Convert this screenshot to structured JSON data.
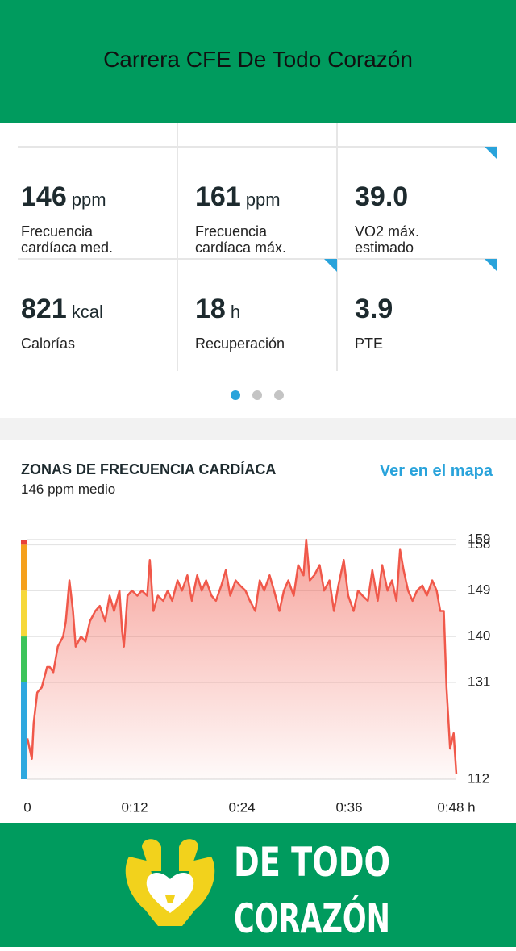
{
  "header": {
    "title": "Carrera CFE De Todo Corazón"
  },
  "stats": [
    {
      "value": "146",
      "unit": "ppm",
      "label_lines": [
        "Frecuencia",
        "cardíaca med."
      ]
    },
    {
      "value": "161",
      "unit": "ppm",
      "label_lines": [
        "Frecuencia",
        "cardíaca máx."
      ]
    },
    {
      "value": "39.0",
      "label_lines": [
        "VO2 máx.",
        "estimado"
      ]
    },
    {
      "value": "821",
      "unit": "kcal",
      "label_lines": [
        "Calorías"
      ]
    },
    {
      "value": "18",
      "unit": "h",
      "label_lines": [
        "Recuperación"
      ]
    },
    {
      "value": "3.9",
      "label_lines": [
        "PTE"
      ]
    }
  ],
  "section": {
    "title": "ZONAS DE FRECUENCIA CARDÍACA",
    "subtitle": "146 ppm medio",
    "link": "Ver en el mapa"
  },
  "chart_data": {
    "type": "line",
    "x": [
      0,
      0.5,
      0.7,
      1.1,
      1.6,
      2.2,
      2.5,
      2.9,
      3.4,
      4.0,
      4.3,
      4.7,
      5.1,
      5.4,
      6.0,
      6.5,
      7.0,
      7.6,
      8.1,
      8.7,
      9.2,
      9.7,
      10.3,
      10.6,
      10.8,
      11.2,
      11.7,
      12.3,
      12.8,
      13.4,
      13.7,
      14.1,
      14.6,
      15.2,
      15.7,
      16.2,
      16.8,
      17.3,
      17.9,
      18.4,
      19.0,
      19.5,
      20.0,
      20.6,
      21.1,
      21.7,
      22.2,
      22.7,
      23.3,
      23.8,
      24.4,
      24.9,
      25.5,
      26.0,
      26.5,
      27.1,
      27.6,
      28.2,
      28.7,
      29.2,
      29.8,
      30.3,
      30.9,
      31.2,
      31.6,
      32.1,
      32.7,
      33.2,
      33.8,
      34.3,
      34.8,
      35.4,
      35.9,
      36.5,
      37.0,
      37.5,
      38.1,
      38.6,
      39.2,
      39.7,
      40.3,
      40.8,
      41.3,
      41.7,
      42.1,
      42.6,
      43.1,
      43.6,
      44.2,
      44.7,
      45.3,
      45.8,
      46.2,
      46.6,
      46.9,
      47.3,
      47.7,
      48.0
    ],
    "series": [
      {
        "color": "#f0584a",
        "values": [
          120,
          116,
          123,
          129,
          130,
          134,
          134,
          133,
          138,
          140,
          143,
          151,
          145,
          138,
          140,
          139,
          143,
          145,
          146,
          143,
          148,
          145,
          149,
          141,
          138,
          148,
          149,
          148,
          149,
          148,
          155,
          145,
          148,
          147,
          149,
          147,
          151,
          149,
          152,
          147,
          152,
          149,
          151,
          148,
          147,
          150,
          153,
          148,
          151,
          150,
          149,
          147,
          145,
          151,
          149,
          152,
          149,
          145,
          149,
          151,
          148,
          154,
          152,
          159,
          151,
          152,
          154,
          149,
          151,
          145,
          150,
          155,
          148,
          145,
          149,
          148,
          147,
          153,
          147,
          154,
          149,
          151,
          147,
          157,
          153,
          149,
          147,
          149,
          150,
          148,
          151,
          149,
          145,
          145,
          130,
          118,
          121,
          113
        ]
      }
    ],
    "zones": [
      {
        "from": 112,
        "to": 131,
        "color": "#2ea8df"
      },
      {
        "from": 131,
        "to": 140,
        "color": "#3cc45a"
      },
      {
        "from": 140,
        "to": 149,
        "color": "#f6d83a"
      },
      {
        "from": 149,
        "to": 158,
        "color": "#f5a01c"
      },
      {
        "from": 158,
        "to": 159,
        "color": "#e8413a"
      }
    ],
    "xlim": [
      0,
      48
    ],
    "xticks": [
      0,
      {
        "value": 12,
        "label": "0:12"
      },
      {
        "value": 24,
        "label": "0:24"
      },
      {
        "value": 36,
        "label": "0:36"
      },
      {
        "value": 48,
        "label": "0:48 h"
      }
    ],
    "ylim": [
      112,
      159
    ],
    "yticks": [
      112,
      131,
      140,
      149,
      158,
      159
    ],
    "grid": true
  },
  "footer": {
    "logo_lines": [
      "DE TODO",
      "CORAZÓN"
    ]
  }
}
